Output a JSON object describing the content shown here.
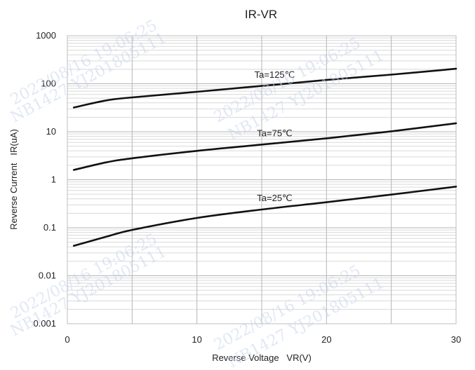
{
  "chart_data": {
    "type": "line",
    "title": "IR-VR",
    "xlabel": "Reverse Voltage   VR(V)",
    "ylabel": "Reverse Current   IR(uA)",
    "xlim": [
      0,
      30
    ],
    "ylim": [
      0.001,
      1000
    ],
    "yscale": "log",
    "grid": true,
    "x_ticks": [
      "0",
      "10",
      "20",
      "30"
    ],
    "y_ticks": [
      "0.001",
      "0.01",
      "0.1",
      "1",
      "10",
      "100",
      "1000"
    ],
    "series": [
      {
        "name": "Ta=125℃",
        "x": [
          0.5,
          3,
          5,
          10,
          15,
          20,
          25,
          30
        ],
        "y": [
          32,
          45,
          52,
          68,
          90,
          120,
          155,
          205
        ]
      },
      {
        "name": "Ta=75℃",
        "x": [
          0.5,
          3,
          5,
          10,
          15,
          20,
          25,
          30
        ],
        "y": [
          1.6,
          2.3,
          2.8,
          4.0,
          5.4,
          7.3,
          10.2,
          15
        ]
      },
      {
        "name": "Ta=25℃",
        "x": [
          0.5,
          3,
          5,
          10,
          15,
          20,
          25,
          30
        ],
        "y": [
          0.042,
          0.065,
          0.09,
          0.16,
          0.24,
          0.34,
          0.49,
          0.72
        ]
      }
    ]
  },
  "watermarks": [
    "2022/08/16  19:06:25",
    "NB1427  YJ201805111"
  ]
}
